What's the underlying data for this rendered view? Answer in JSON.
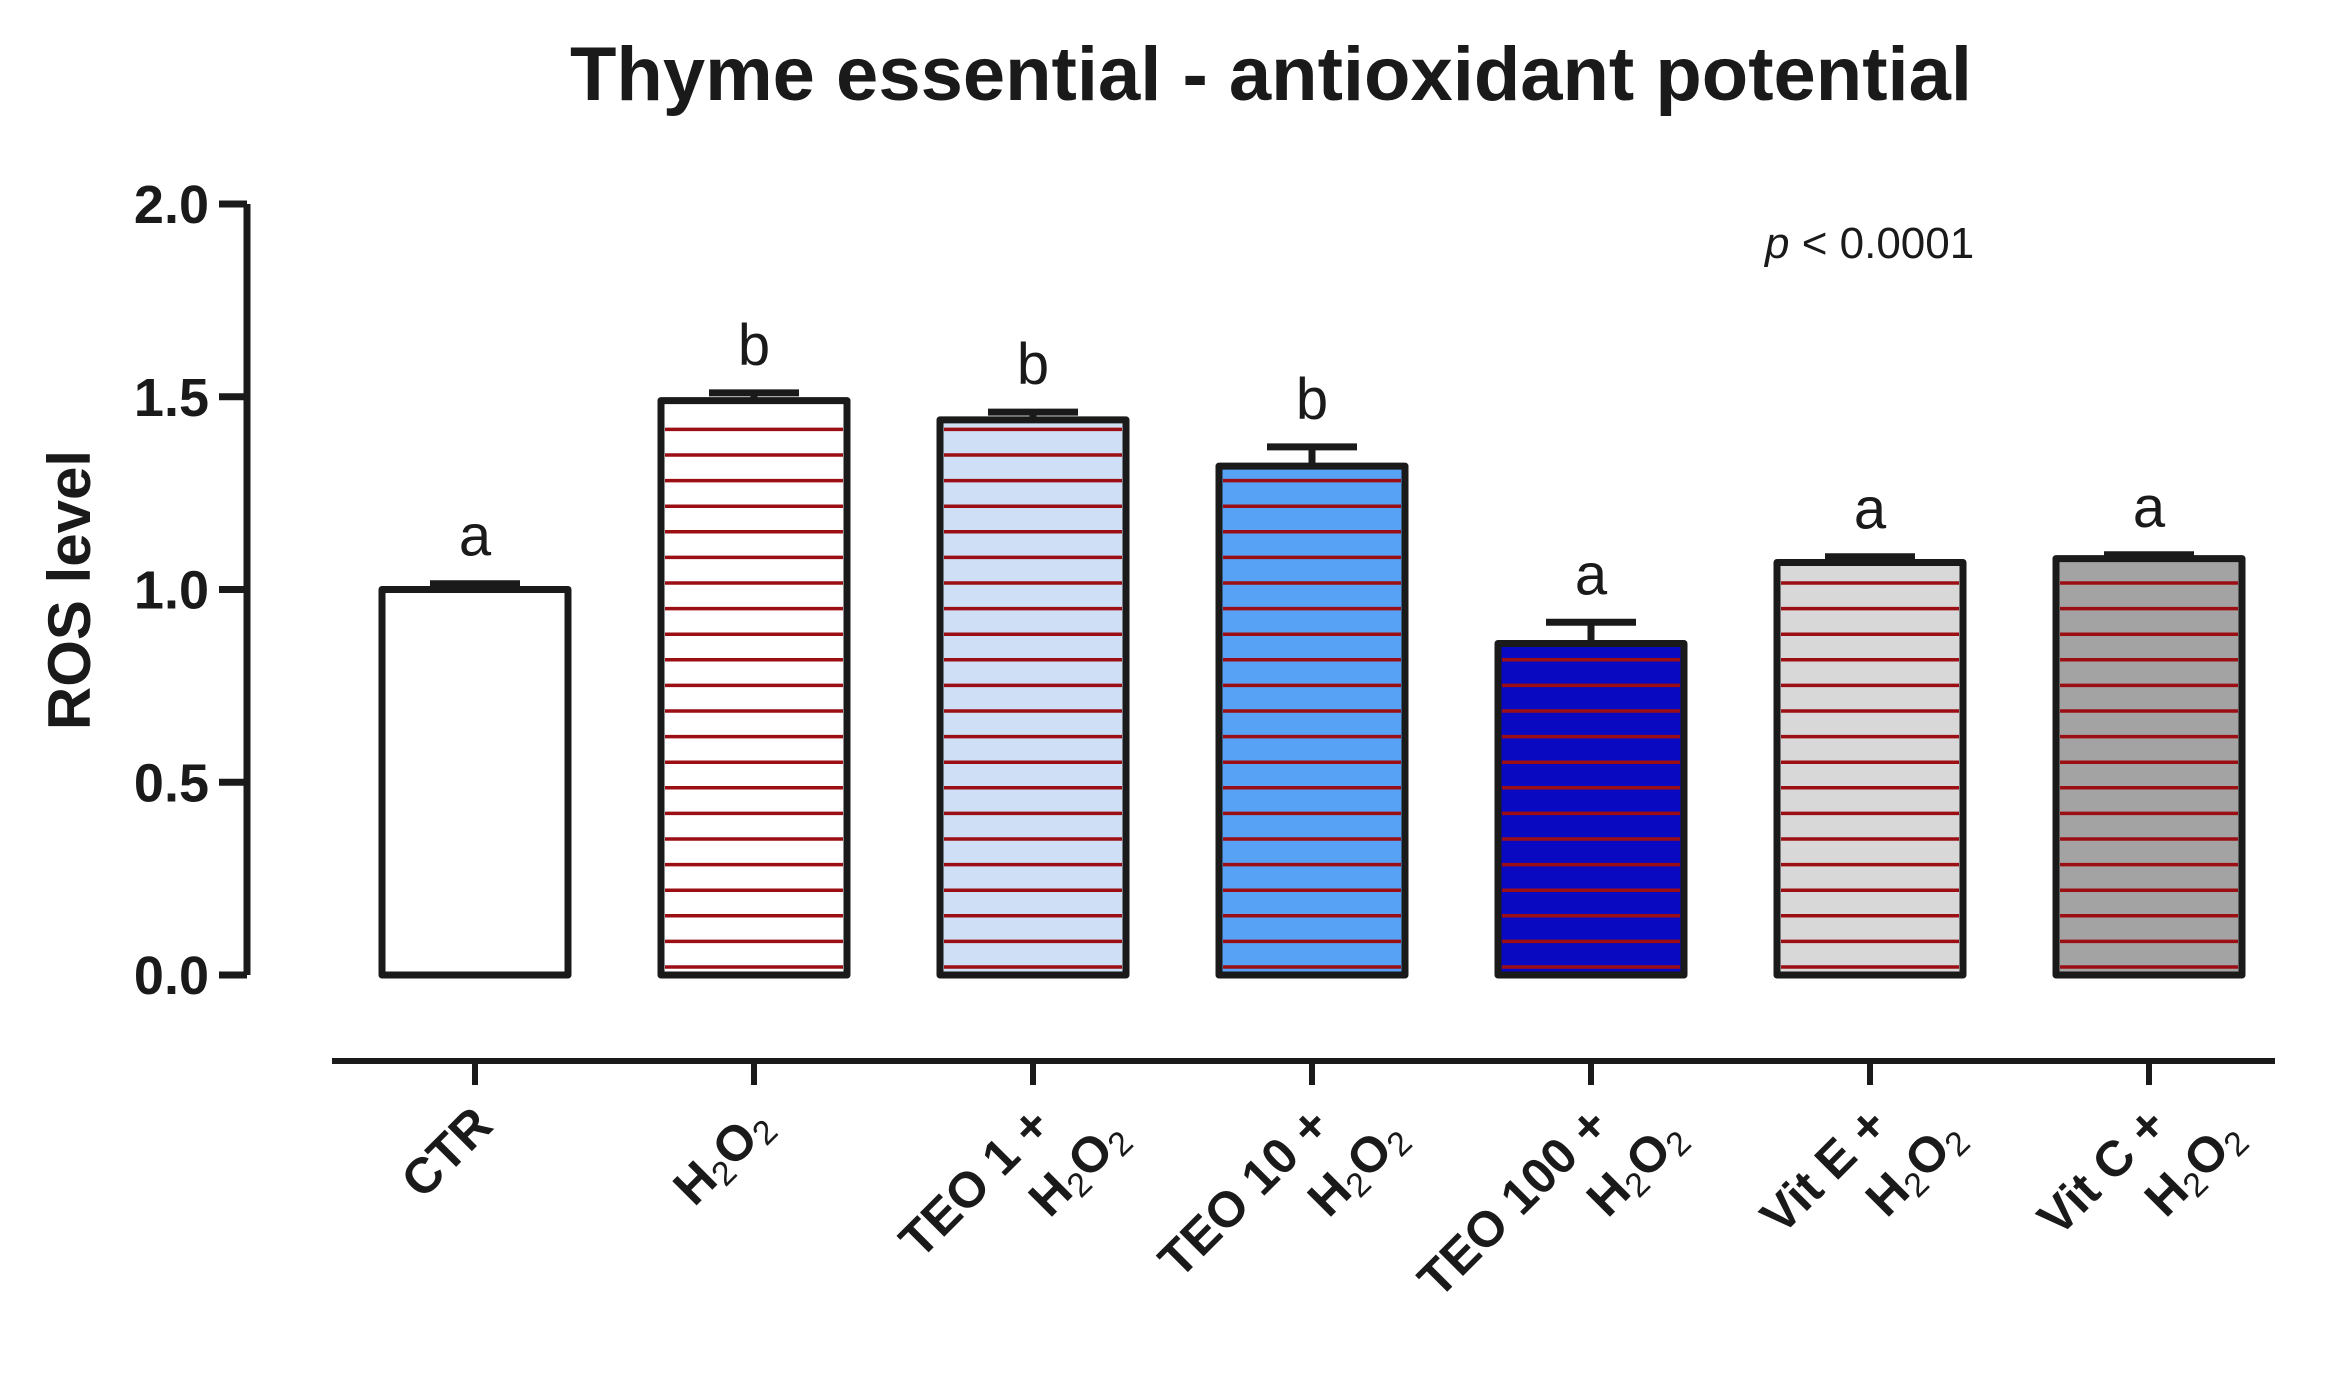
{
  "chart_data": {
    "type": "bar",
    "title": "Thyme essential - antioxidant potential",
    "ylabel": "ROS level",
    "xlabel": "",
    "ylim": [
      0,
      2.0
    ],
    "yticks": [
      "0.0",
      "0.5",
      "1.0",
      "1.5",
      "2.0"
    ],
    "categories": [
      {
        "line1": "CTR",
        "line2": ""
      },
      {
        "line1": "H2O2",
        "line2": ""
      },
      {
        "line1": "TEO 1 +",
        "line2": "H2O2"
      },
      {
        "line1": "TEO 10 +",
        "line2": "H2O2"
      },
      {
        "line1": "TEO 100 +",
        "line2": "H2O2"
      },
      {
        "line1": "Vit E +",
        "line2": "H2O2"
      },
      {
        "line1": "Vit C +",
        "line2": "H2O2"
      }
    ],
    "values": [
      1.0,
      1.49,
      1.44,
      1.32,
      0.86,
      1.07,
      1.08
    ],
    "errors": [
      0.015,
      0.02,
      0.02,
      0.05,
      0.055,
      0.015,
      0.01
    ],
    "significance": [
      "a",
      "b",
      "b",
      "b",
      "a",
      "a",
      "a"
    ],
    "fill_colors": [
      "#ffffff",
      "#ffffff",
      "#cfe0f6",
      "#58a2f5",
      "#0a09c2",
      "#d8d8d8",
      "#a3a3a3"
    ],
    "hatched": [
      false,
      true,
      true,
      true,
      true,
      true,
      true
    ],
    "hatch_color": "#9b0f14",
    "annotation": {
      "italic": "p",
      "text": " < 0.0001"
    },
    "grid": false,
    "legend": "none"
  }
}
